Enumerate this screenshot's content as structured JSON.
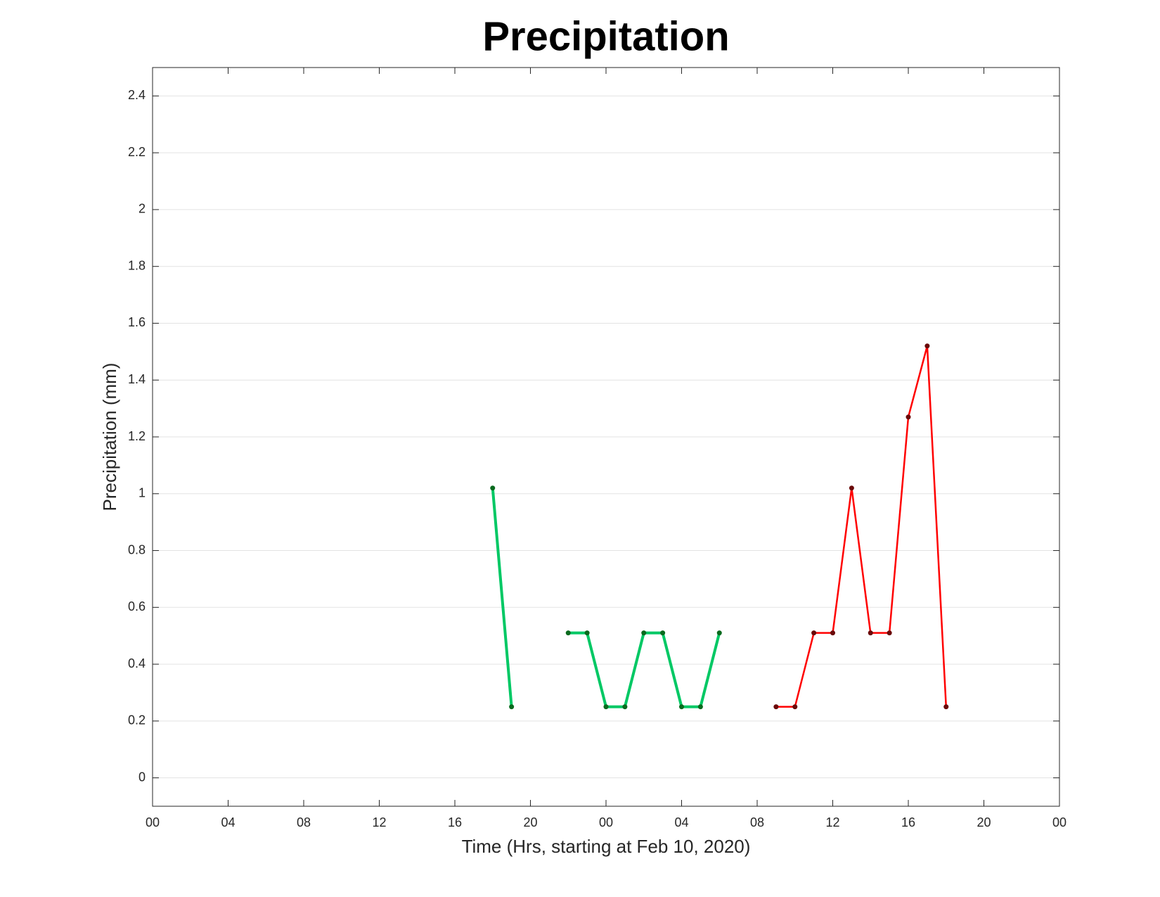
{
  "chart_data": {
    "type": "line",
    "title": "Precipitation",
    "x_label": "Time (Hrs, starting at Feb 10, 2020)",
    "y_label": "Precipitation (mm)",
    "xlim": [
      0,
      48
    ],
    "xticks": [
      {
        "value": 0,
        "label": "00"
      },
      {
        "value": 4,
        "label": "04"
      },
      {
        "value": 8,
        "label": "08"
      },
      {
        "value": 12,
        "label": "12"
      },
      {
        "value": 16,
        "label": "16"
      },
      {
        "value": 20,
        "label": "20"
      },
      {
        "value": 24,
        "label": "00"
      },
      {
        "value": 28,
        "label": "04"
      },
      {
        "value": 32,
        "label": "08"
      },
      {
        "value": 36,
        "label": "12"
      },
      {
        "value": 40,
        "label": "16"
      },
      {
        "value": 44,
        "label": "20"
      },
      {
        "value": 48,
        "label": "00"
      }
    ],
    "ylim": [
      -0.1,
      2.5
    ],
    "yticks": [
      0,
      0.2,
      0.4,
      0.6,
      0.8,
      1,
      1.2,
      1.4,
      1.6,
      1.8,
      2,
      2.2,
      2.4
    ],
    "grid": true,
    "series": [
      {
        "color": "#00c864",
        "marker_color": "#0a6a1e",
        "line_width": 4,
        "x": [
          18,
          19,
          20,
          21,
          22,
          23,
          24,
          25,
          26,
          27,
          28,
          29,
          30
        ],
        "values": [
          1.02,
          0.25,
          null,
          null,
          0.51,
          0.51,
          0.25,
          0.25,
          0.51,
          0.51,
          0.25,
          0.25,
          0.51
        ]
      },
      {
        "color": "#ff0000",
        "marker_color": "#6a0a0a",
        "line_width": 2.5,
        "x": [
          33,
          34,
          35,
          36,
          37,
          38,
          39,
          40,
          41,
          42
        ],
        "values": [
          0.25,
          0.25,
          0.51,
          0.51,
          1.02,
          0.51,
          0.51,
          1.27,
          1.52,
          0.25
        ]
      }
    ]
  }
}
